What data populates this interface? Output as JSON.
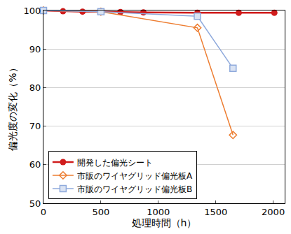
{
  "chart_data": {
    "type": "line",
    "x_label": "処理時間（h）",
    "y_label": "偏光度の変化（%）",
    "xlim": [
      0,
      2100
    ],
    "xticks": [
      0,
      500,
      1000,
      1500,
      2000
    ],
    "ylim": [
      50,
      100
    ],
    "yticks": [
      50,
      60,
      70,
      80,
      90,
      100
    ],
    "grid": true,
    "legend": "lower left",
    "series": [
      {
        "name": "開発した偏光シート",
        "color": "#d01c1c",
        "marker": "circle",
        "line_style": "solid",
        "x": [
          0,
          170,
          340,
          500,
          670,
          870,
          1340,
          1700,
          2010
        ],
        "values": [
          100,
          99.8,
          99.7,
          99.7,
          99.6,
          99.5,
          99.4,
          99.4,
          99.4
        ]
      },
      {
        "name": "市販のワイヤグリッド偏光板A",
        "color": "#ed7d31",
        "marker": "diamond-open",
        "line_style": "solid",
        "x": [
          0,
          500,
          1340,
          1650
        ],
        "values": [
          100,
          99.7,
          95.5,
          67.7
        ]
      },
      {
        "name": "市販のワイヤグリッド偏光板B",
        "color": "#8faadc",
        "marker": "square",
        "line_style": "solid",
        "x": [
          0,
          500,
          1340,
          1650
        ],
        "values": [
          100,
          99.7,
          98.5,
          85
        ]
      }
    ]
  }
}
